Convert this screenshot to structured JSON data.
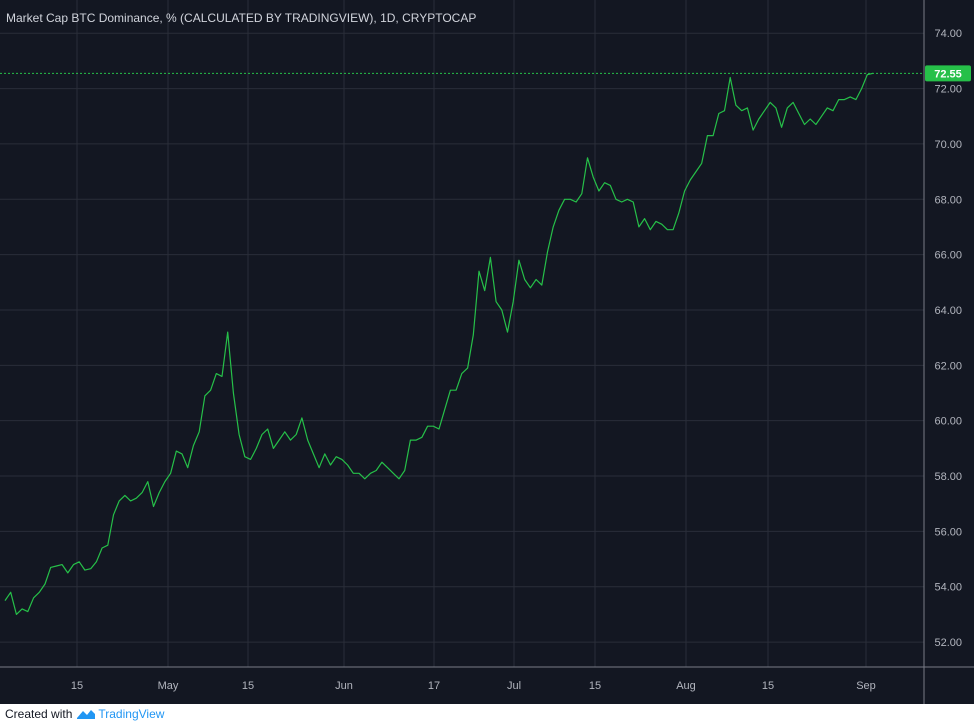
{
  "chart_data": {
    "type": "line",
    "title": "Market Cap BTC Dominance, % (CALCULATED BY TRADINGVIEW), 1D, CRYPTOCAP",
    "x_tick_labels": [
      "15",
      "May",
      "15",
      "Jun",
      "17",
      "Jul",
      "15",
      "Aug",
      "15",
      "Sep"
    ],
    "y_tick_labels": [
      "52.00",
      "54.00",
      "56.00",
      "58.00",
      "60.00",
      "62.00",
      "64.00",
      "66.00",
      "68.00",
      "70.00",
      "72.00",
      "74.00"
    ],
    "ylim": [
      51.1,
      75.2
    ],
    "grid": true,
    "last_value_label": "72.55",
    "last_value": 72.55,
    "colors": {
      "background": "#131722",
      "line": "#26c049",
      "grid": "#2a2e39",
      "axis_label": "#26c049"
    },
    "series": [
      {
        "values": [
          53.5,
          53.8,
          53.0,
          53.2,
          53.1,
          53.6,
          53.8,
          54.1,
          54.7,
          54.75,
          54.8,
          54.5,
          54.8,
          54.9,
          54.6,
          54.65,
          54.9,
          55.4,
          55.5,
          56.6,
          57.1,
          57.3,
          57.1,
          57.2,
          57.4,
          57.8,
          56.9,
          57.4,
          57.8,
          58.1,
          58.9,
          58.8,
          58.3,
          59.1,
          59.6,
          60.9,
          61.1,
          61.7,
          61.6,
          63.2,
          61.0,
          59.5,
          58.7,
          58.6,
          59.0,
          59.5,
          59.7,
          59.0,
          59.3,
          59.6,
          59.3,
          59.5,
          60.1,
          59.3,
          58.8,
          58.3,
          58.8,
          58.4,
          58.7,
          58.6,
          58.4,
          58.1,
          58.1,
          57.9,
          58.1,
          58.2,
          58.5,
          58.3,
          58.1,
          57.9,
          58.2,
          59.3,
          59.3,
          59.4,
          59.8,
          59.8,
          59.7,
          60.4,
          61.1,
          61.1,
          61.7,
          61.9,
          63.1,
          65.4,
          64.7,
          65.9,
          64.3,
          64.0,
          63.2,
          64.3,
          65.8,
          65.1,
          64.8,
          65.1,
          64.9,
          66.1,
          67.0,
          67.6,
          68.0,
          68.0,
          67.9,
          68.2,
          69.5,
          68.8,
          68.3,
          68.6,
          68.5,
          68.0,
          67.9,
          68.0,
          67.9,
          67.0,
          67.3,
          66.9,
          67.2,
          67.1,
          66.9,
          66.9,
          67.5,
          68.3,
          68.7,
          69.0,
          69.3,
          70.3,
          70.3,
          71.1,
          71.2,
          72.4,
          71.4,
          71.2,
          71.3,
          70.5,
          70.9,
          71.2,
          71.5,
          71.3,
          70.6,
          71.3,
          71.5,
          71.1,
          70.7,
          70.9,
          70.7,
          71.0,
          71.3,
          71.2,
          71.6,
          71.6,
          71.7,
          71.6,
          72.0,
          72.5,
          72.55
        ]
      }
    ]
  },
  "footer": {
    "prefix": "Created with",
    "brand": "TradingView"
  }
}
